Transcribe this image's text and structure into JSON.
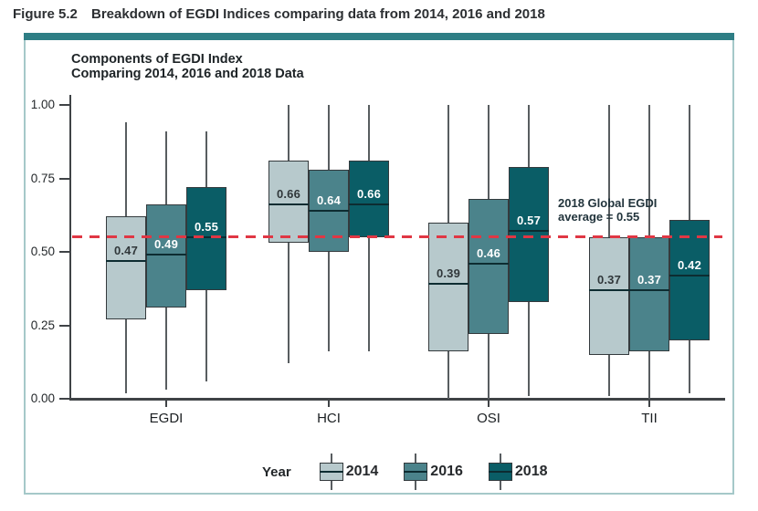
{
  "figure": {
    "label": "Figure 5.2",
    "title": "Breakdown of EGDI Indices comparing data from 2014, 2016 and 2018"
  },
  "chart": {
    "title_line1": "Components of EGDI Index",
    "title_line2": "Comparing 2014, 2016 and 2018 Data",
    "annotation_line1": "2018 Global EGDI",
    "annotation_line2": "average = 0.55",
    "legend_title": "Year"
  },
  "colors": {
    "accent_teal": "#2e7e85",
    "panel_border": "#a5c8c9",
    "year_2014": "#b7c9cc",
    "year_2016": "#4b838b",
    "year_2018": "#0a5d66",
    "reference_red": "#e03744"
  },
  "chart_data": {
    "type": "boxplot",
    "title": "Components of EGDI Index Comparing 2014, 2016 and 2018 Data",
    "categories": [
      "EGDI",
      "HCI",
      "OSI",
      "TII"
    ],
    "ylim": [
      0,
      1
    ],
    "ytick_values": [
      0,
      0.25,
      0.5,
      0.75,
      1
    ],
    "ytick_labels": [
      "0.00",
      "0.25",
      "0.50",
      "0.75",
      "1.00"
    ],
    "grid": false,
    "legend_position": "bottom",
    "reference_line": {
      "value": 0.55,
      "label": "2018 Global EGDI average = 0.55",
      "style": "dashed",
      "color": "#e03744"
    },
    "median_labels_shown": true,
    "series": [
      {
        "name": "2014",
        "color": "#b7c9cc",
        "label_color": "#30373a",
        "boxes": [
          {
            "category": "EGDI",
            "low": 0.02,
            "q1": 0.27,
            "median": 0.47,
            "q3": 0.62,
            "high": 0.94
          },
          {
            "category": "HCI",
            "low": 0.12,
            "q1": 0.53,
            "median": 0.66,
            "q3": 0.81,
            "high": 1.0
          },
          {
            "category": "OSI",
            "low": 0.0,
            "q1": 0.16,
            "median": 0.39,
            "q3": 0.6,
            "high": 1.0
          },
          {
            "category": "TII",
            "low": 0.01,
            "q1": 0.15,
            "median": 0.37,
            "q3": 0.55,
            "high": 1.0
          }
        ]
      },
      {
        "name": "2016",
        "color": "#4b838b",
        "label_color": "#ffffff",
        "boxes": [
          {
            "category": "EGDI",
            "low": 0.03,
            "q1": 0.31,
            "median": 0.49,
            "q3": 0.66,
            "high": 0.91
          },
          {
            "category": "HCI",
            "low": 0.16,
            "q1": 0.5,
            "median": 0.64,
            "q3": 0.78,
            "high": 1.0
          },
          {
            "category": "OSI",
            "low": 0.0,
            "q1": 0.22,
            "median": 0.46,
            "q3": 0.68,
            "high": 1.0
          },
          {
            "category": "TII",
            "low": 0.0,
            "q1": 0.16,
            "median": 0.37,
            "q3": 0.55,
            "high": 1.0
          }
        ]
      },
      {
        "name": "2018",
        "color": "#0a5d66",
        "label_color": "#ffffff",
        "boxes": [
          {
            "category": "EGDI",
            "low": 0.06,
            "q1": 0.37,
            "median": 0.55,
            "q3": 0.72,
            "high": 0.91
          },
          {
            "category": "HCI",
            "low": 0.16,
            "q1": 0.55,
            "median": 0.66,
            "q3": 0.81,
            "high": 1.0
          },
          {
            "category": "OSI",
            "low": 0.01,
            "q1": 0.33,
            "median": 0.57,
            "q3": 0.79,
            "high": 1.0
          },
          {
            "category": "TII",
            "low": 0.02,
            "q1": 0.2,
            "median": 0.42,
            "q3": 0.61,
            "high": 1.0
          }
        ]
      }
    ]
  }
}
